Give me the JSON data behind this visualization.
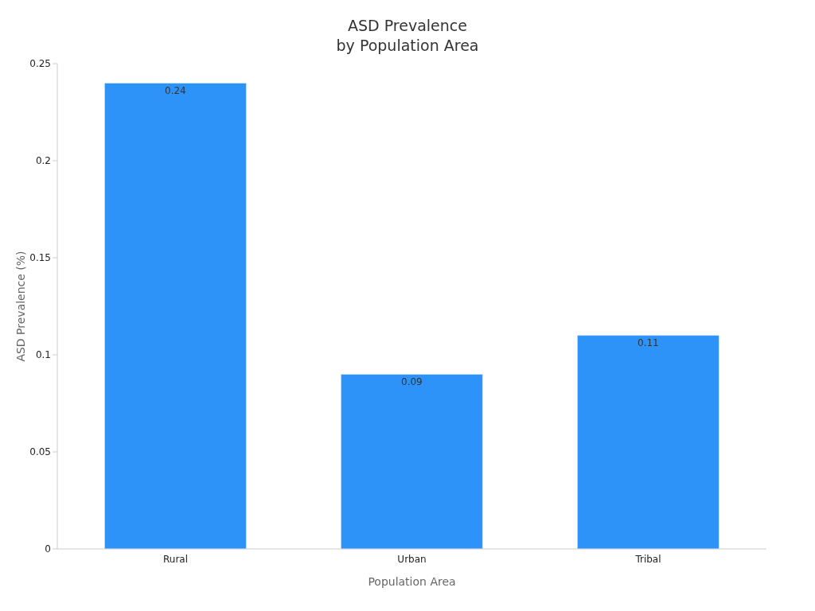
{
  "chart_data": {
    "type": "bar",
    "title": "ASD Prevalence\nby Population Area",
    "xlabel": "Population Area",
    "ylabel": "ASD Prevalence (%)",
    "categories": [
      "Rural",
      "Urban",
      "Tribal"
    ],
    "values": [
      0.24,
      0.09,
      0.11
    ],
    "color": "#2e93f9",
    "ylim": [
      0,
      0.25
    ],
    "yticks": [
      0,
      0.05,
      0.1,
      0.15,
      0.2,
      0.25
    ],
    "grid": false,
    "data_labels": true
  }
}
